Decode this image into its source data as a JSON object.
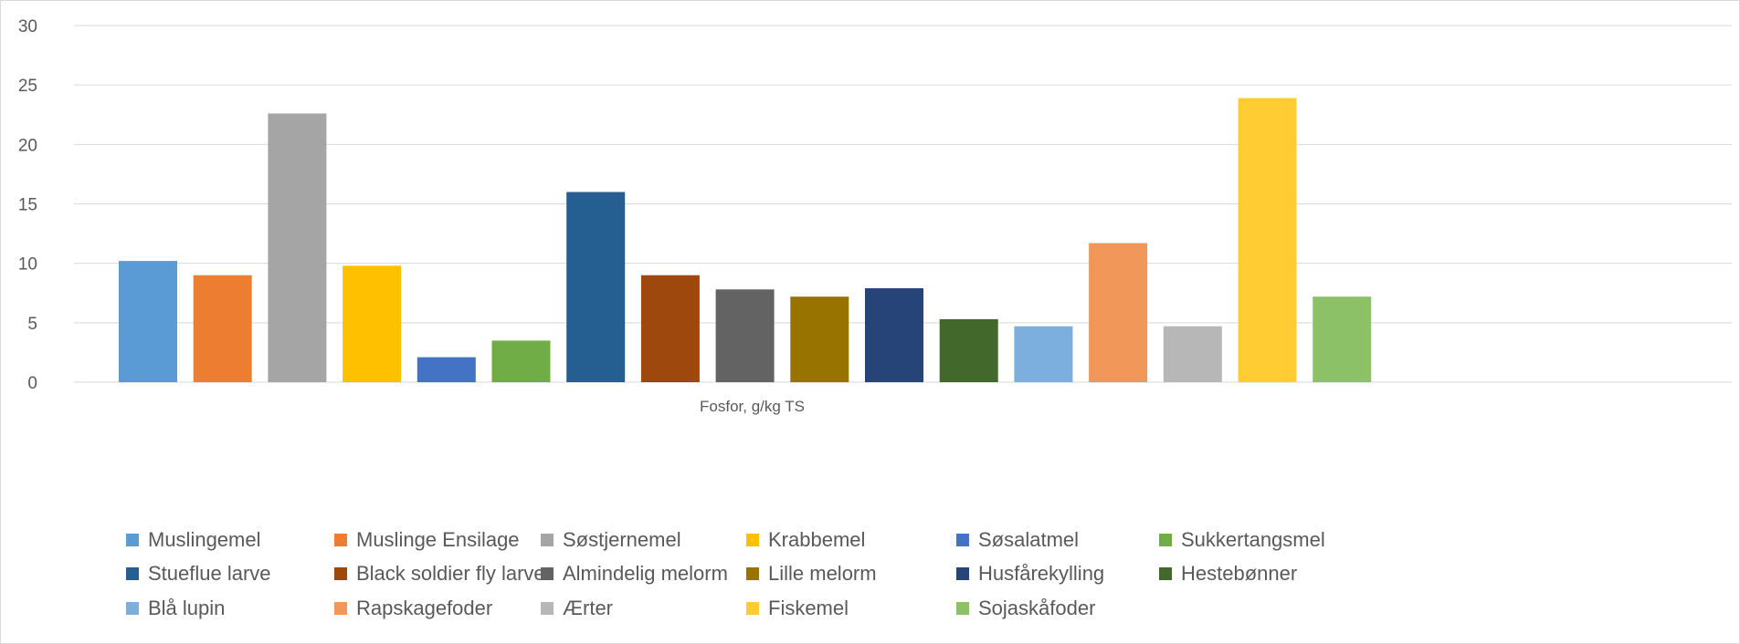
{
  "chart_data": {
    "type": "bar",
    "title": "",
    "xlabel": "Fosfor, g/kg TS",
    "ylabel": "",
    "ylim": [
      0,
      30
    ],
    "yticks": [
      0,
      5,
      10,
      15,
      20,
      25,
      30
    ],
    "grid": true,
    "legend_position": "bottom",
    "series": [
      {
        "name": "Muslingemel",
        "value": 10.2,
        "color": "#5B9BD5"
      },
      {
        "name": "Muslinge Ensilage",
        "value": 9.0,
        "color": "#ED7D31"
      },
      {
        "name": "Søstjernemel",
        "value": 22.6,
        "color": "#A5A5A5"
      },
      {
        "name": "Krabbemel",
        "value": 9.8,
        "color": "#FFC000"
      },
      {
        "name": "Søsalatmel",
        "value": 2.1,
        "color": "#4472C4"
      },
      {
        "name": "Sukkertangsmel",
        "value": 3.5,
        "color": "#70AD47"
      },
      {
        "name": "Stueflue larve",
        "value": 16.0,
        "color": "#255E91"
      },
      {
        "name": "Black soldier fly larve",
        "value": 9.0,
        "color": "#9E480E"
      },
      {
        "name": "Almindelig melorm",
        "value": 7.8,
        "color": "#636363"
      },
      {
        "name": "Lille melorm",
        "value": 7.2,
        "color": "#997300"
      },
      {
        "name": "Husfårekylling",
        "value": 7.9,
        "color": "#264478"
      },
      {
        "name": "Hestebønner",
        "value": 5.3,
        "color": "#43682B"
      },
      {
        "name": "Blå lupin",
        "value": 4.7,
        "color": "#7CAFDD"
      },
      {
        "name": "Rapskagefoder",
        "value": 11.7,
        "color": "#F1975A"
      },
      {
        "name": "Ærter",
        "value": 4.7,
        "color": "#B7B7B7"
      },
      {
        "name": "Fiskemel",
        "value": 23.9,
        "color": "#FFCD33"
      },
      {
        "name": "Sojaskåfoder",
        "value": 7.2,
        "color": "#8CC168"
      }
    ]
  }
}
